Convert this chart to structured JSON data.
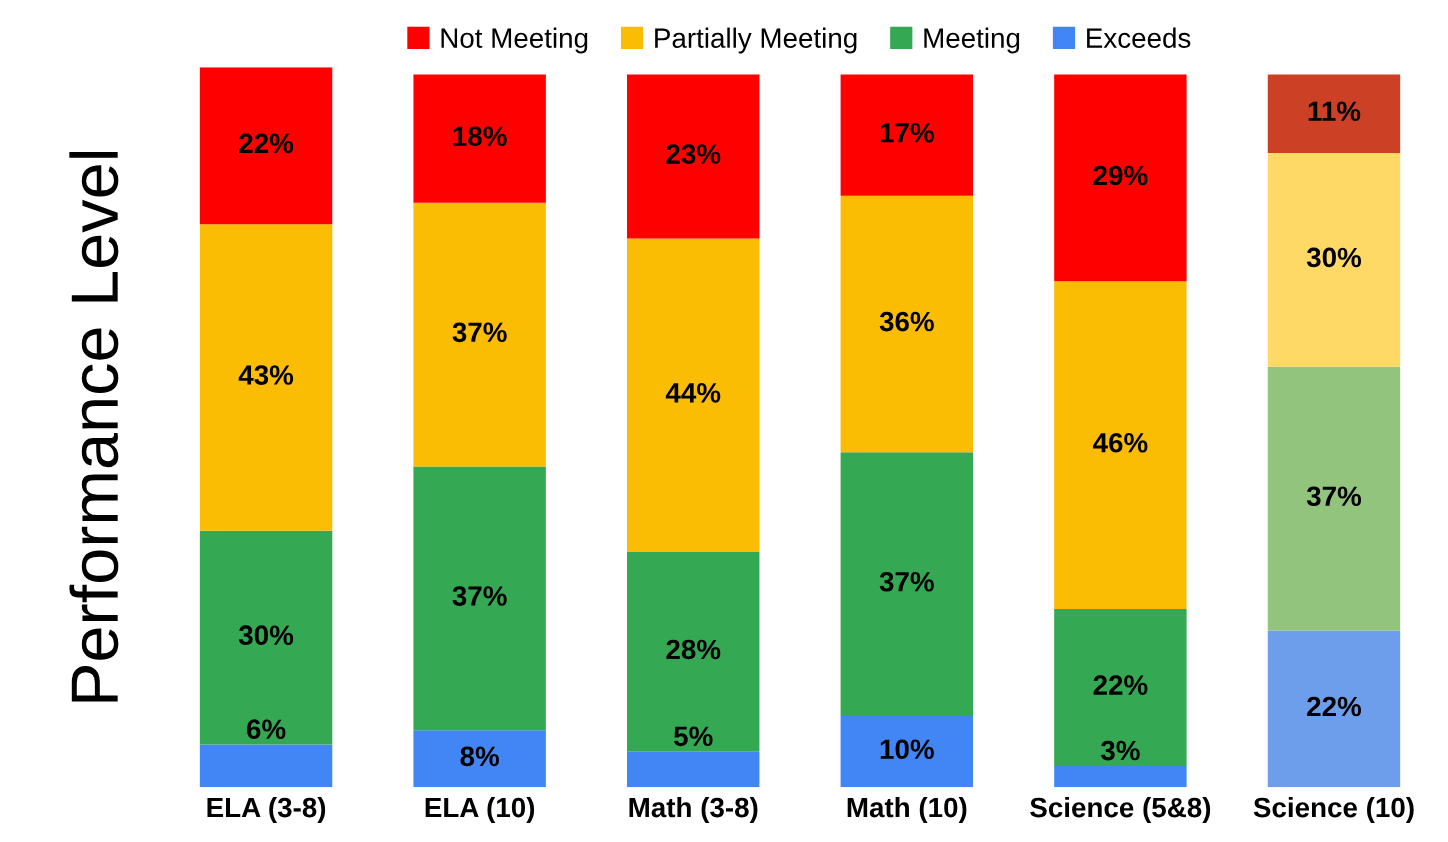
{
  "chart_data": {
    "type": "bar",
    "stacked": true,
    "ylabel": "Performance Level",
    "legend": "top",
    "grid": false,
    "tick_labels": "x",
    "categories": [
      "ELA (3-8)",
      "ELA (10)",
      "Math (3-8)",
      "Math (10)",
      "Science (5&8)",
      "Science (10)"
    ],
    "series": [
      {
        "name": "Exceeds",
        "color": "#4285f4",
        "colors": [
          "#4285f4",
          "#4285f4",
          "#4285f4",
          "#4285f4",
          "#4285f4",
          "#6d9eeb"
        ],
        "values": [
          6,
          8,
          5,
          10,
          3,
          22
        ],
        "value_labels": [
          "6%",
          "8%",
          "5%",
          "10%",
          "3%",
          "22%"
        ]
      },
      {
        "name": "Meeting",
        "color": "#34a853",
        "colors": [
          "#34a853",
          "#34a853",
          "#34a853",
          "#34a853",
          "#34a853",
          "#93c47d"
        ],
        "values": [
          30,
          37,
          28,
          37,
          22,
          37
        ],
        "value_labels": [
          "30%",
          "37%",
          "28%",
          "37%",
          "22%",
          "37%"
        ]
      },
      {
        "name": "Partially Meeting",
        "color": "#fbbc04",
        "colors": [
          "#fbbc04",
          "#fbbc04",
          "#fbbc04",
          "#fbbc04",
          "#fbbc04",
          "#ffd966"
        ],
        "values": [
          43,
          37,
          44,
          36,
          46,
          30
        ],
        "value_labels": [
          "43%",
          "37%",
          "44%",
          "36%",
          "46%",
          "30%"
        ]
      },
      {
        "name": "Not Meeting",
        "color": "#ff0000",
        "colors": [
          "#ff0000",
          "#ff0000",
          "#ff0000",
          "#ff0000",
          "#ff0000",
          "#cc4125"
        ],
        "values": [
          22,
          18,
          23,
          17,
          29,
          11
        ],
        "value_labels": [
          "22%",
          "18%",
          "23%",
          "17%",
          "29%",
          "11%"
        ]
      }
    ]
  }
}
